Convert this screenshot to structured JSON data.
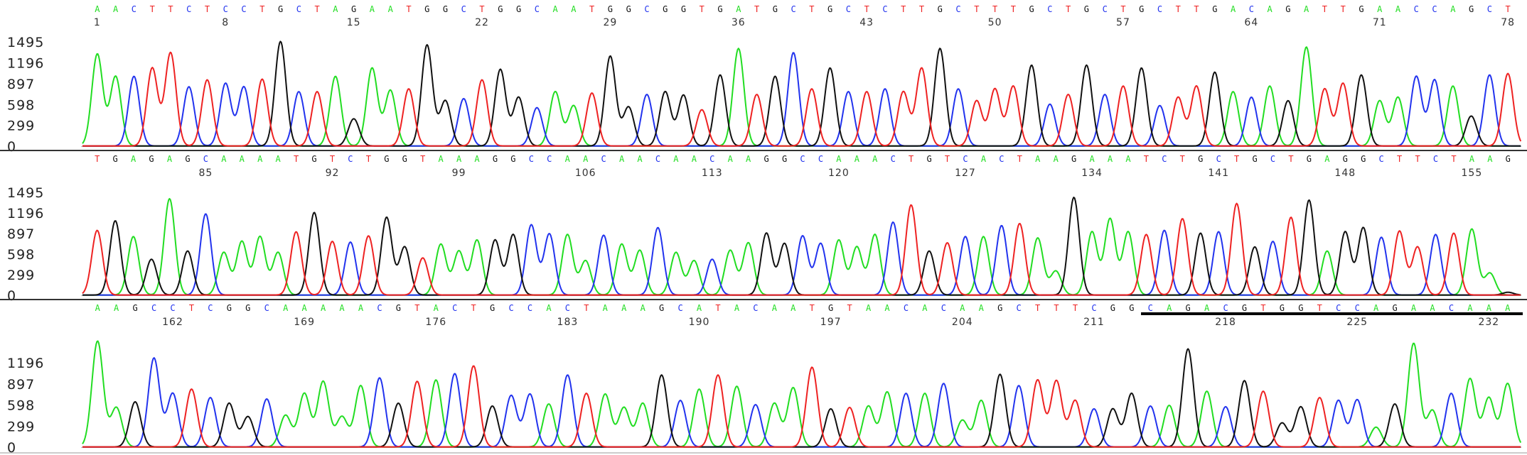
{
  "colors": {
    "A": "#22dd22",
    "C": "#2233ee",
    "G": "#111111",
    "T": "#ee2222",
    "divider": "#333333",
    "baseline": "#bbbbbb"
  },
  "chart_data": {
    "type": "line",
    "title": "",
    "xlabel": "",
    "ylabel": "",
    "tracks": [
      {
        "sequence": "AACTTCTCCTGCTAGAATGGCTGGCAATGGCGGTGATGCTGCTCTTGCTTTGCTGCTGCTTGACAGATTGAACCAGCT",
        "start_position": 1,
        "positions": [
          1,
          8,
          15,
          22,
          29,
          36,
          43,
          50,
          57,
          64,
          71,
          78
        ],
        "y_ticks": [
          1495,
          1196,
          897,
          598,
          299,
          0
        ],
        "ylim": [
          0,
          1650
        ],
        "peaks": [
          1320,
          1000,
          1000,
          1120,
          1340,
          850,
          950,
          900,
          850,
          960,
          1500,
          780,
          780,
          1000,
          390,
          1120,
          800,
          820,
          1450,
          650,
          680,
          950,
          1100,
          700,
          550,
          780,
          580,
          760,
          1290,
          560,
          740,
          780,
          730,
          520,
          1020,
          1400,
          740,
          1000,
          1340,
          820,
          1120,
          780,
          780,
          820,
          780,
          1120,
          1400,
          820,
          650,
          820,
          860,
          1160,
          600,
          740,
          1160,
          740,
          860,
          1120,
          580,
          700,
          860,
          1060,
          780,
          700,
          860,
          650,
          1420,
          820,
          900,
          1020,
          650,
          700,
          1000,
          950,
          860,
          430,
          1020,
          1040
        ]
      },
      {
        "sequence": "TGAGAGCAAAATGTCTGGTAAAGGCCAACAACAACAAGGCCAAACTGTCACTAAGAAATCTGCTGCTGAGGCTTCTAAG",
        "start_position": 79,
        "positions": [
          85,
          92,
          99,
          106,
          113,
          120,
          127,
          134,
          141,
          148,
          155
        ],
        "y_ticks": [
          1495,
          1196,
          897,
          598,
          299,
          0
        ],
        "ylim": [
          0,
          1650
        ],
        "peaks": [
          940,
          1080,
          850,
          520,
          1400,
          640,
          1180,
          620,
          780,
          850,
          620,
          920,
          1200,
          780,
          770,
          860,
          1130,
          700,
          540,
          740,
          640,
          800,
          800,
          880,
          1020,
          890,
          880,
          500,
          870,
          740,
          650,
          980,
          620,
          500,
          520,
          650,
          760,
          900,
          750,
          860,
          750,
          800,
          700,
          880,
          1060,
          1310,
          640,
          760,
          850,
          850,
          1010,
          1040,
          830,
          350,
          1420,
          920,
          1110,
          920,
          880,
          940,
          1110,
          900,
          920,
          1330,
          700,
          780,
          1130,
          1380,
          640,
          920,
          980,
          840,
          930,
          700,
          880,
          900,
          960,
          320,
          40
        ]
      },
      {
        "sequence": "AAGCCTCGGCAAAAACGTACTGCCACTAAAGCATACAATGTAACACAAGCTTTCGGCAGACGTGGTCCAGAACAAA",
        "start_position": 158,
        "positions": [
          162,
          169,
          176,
          183,
          190,
          197,
          204,
          211,
          218,
          225,
          232
        ],
        "y_ticks": [
          1196,
          897,
          598,
          299,
          0
        ],
        "ylim": [
          0,
          1650
        ],
        "peaks": [
          1500,
          560,
          640,
          1260,
          760,
          820,
          700,
          620,
          430,
          680,
          450,
          760,
          930,
          430,
          870,
          980,
          620,
          930,
          950,
          1040,
          1150,
          580,
          730,
          750,
          610,
          1020,
          760,
          750,
          560,
          620,
          1020,
          660,
          820,
          1020,
          860,
          600,
          620,
          840,
          1130,
          540,
          560,
          580,
          780,
          760,
          760,
          900,
          380,
          660,
          1030,
          870,
          950,
          940,
          660,
          540,
          540,
          760,
          580,
          590,
          1390,
          790,
          570,
          940,
          790,
          340,
          570,
          700,
          660,
          670,
          280,
          610,
          1470,
          520,
          760,
          970,
          700,
          900
        ]
      }
    ],
    "annotations": [
      {
        "type": "underline",
        "track": 2,
        "from_position": 214,
        "to_position": 234
      }
    ]
  }
}
